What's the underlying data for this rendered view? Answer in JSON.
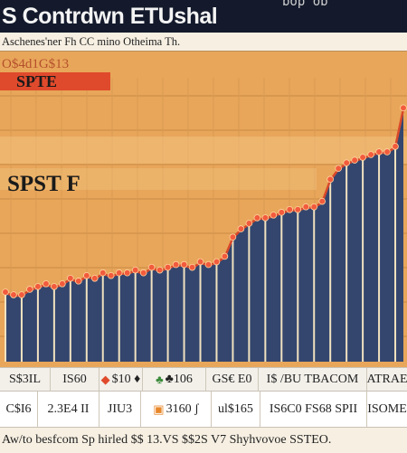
{
  "app": {
    "title": "S Contrdwn ETUshal",
    "corner_text": "bop  ob",
    "subtitle": "Aschenes'ner Fh  CC mino Otheima Th."
  },
  "overlay": {
    "top_tag": "O$4d1G$13",
    "banner_label": "SPTE",
    "mid_label": "SPST F"
  },
  "table": {
    "row1": [
      "S$3IL",
      "IS60",
      "$10 ♦",
      "♣106",
      "GS€ E0",
      "I$ /BU TBACOM",
      "ATRAE"
    ],
    "row2": [
      "C$I6",
      "2.3E4 II",
      "JIU3",
      "3160 ʃ",
      "ul$165",
      "IS6C0 FS68 SPII",
      "ISOME"
    ],
    "footer": "Aw/to besfcom Sp hirled $$ 13.VS $$2S  V7 Shyhvovoe SSTEO.   "
  },
  "colors": {
    "title_bg": "#141a2c",
    "page_bg": "#e8a65a",
    "bar": "#34466e",
    "line": "#d9482a",
    "marker": "#f25b3c",
    "pale_band": "#f0c07c"
  },
  "icons": {
    "row1_c3": "diamond-icon",
    "row1_c4": "leaf-icon",
    "row2_c4": "box-icon"
  },
  "chart_data": {
    "type": "area",
    "title": "",
    "xlabel": "",
    "ylabel": "",
    "ylim": [
      0,
      100
    ],
    "series": [
      {
        "values": [
          25,
          24,
          24,
          26,
          27,
          28,
          27,
          28,
          30,
          29,
          31,
          30,
          32,
          31,
          32,
          32,
          33,
          32,
          34,
          33,
          34,
          35,
          35,
          34,
          36,
          35,
          36,
          38,
          45,
          48,
          50,
          52,
          52,
          53,
          54,
          55,
          55,
          56,
          56,
          58,
          66,
          70,
          72,
          73,
          74,
          75,
          76,
          76,
          78,
          92
        ]
      }
    ]
  }
}
